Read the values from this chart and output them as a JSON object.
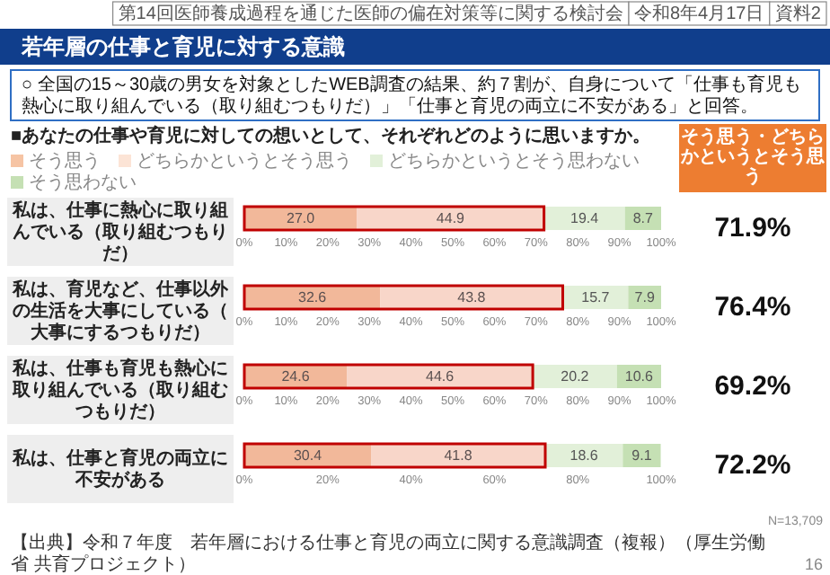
{
  "chart_data": [
    {
      "type": "bar",
      "orientation": "horizontal",
      "stacked": true,
      "legend": "top",
      "title": "若年層の仕事と育児に対する意識",
      "subtitle": "○ 全国の15～30歳の男女を対象としたWEB調査の結果、約７割が、自身について「仕事も育児も熱心に取り組んでいる（取り組むつもりだ）」「仕事と育児の両立に不安がある」と回答。",
      "categories": [
        "私は、仕事に熱心に取り組んでいる（取り組むつもりだ）"
      ],
      "bands": [
        {
          "axis": "x",
          "from": 0,
          "to": 71.9,
          "color": "#c00000"
        }
      ],
      "series": [
        {
          "name": "そう思う",
          "color": "#f6c4a4",
          "values": [
            27.0
          ],
          "value_labels": [
            "27.0"
          ]
        },
        {
          "name": "どちらかというとそう思う",
          "color": "#fce4d6",
          "values": [
            44.9
          ],
          "value_labels": [
            "44.9"
          ]
        },
        {
          "name": "どちらかというとそう思わない",
          "color": "#e2f0d9",
          "values": [
            19.4
          ],
          "value_labels": [
            "19.4"
          ]
        },
        {
          "name": "そう思わない",
          "color": "#c5e0b4",
          "values": [
            8.7
          ],
          "value_labels": [
            "8.7"
          ]
        }
      ],
      "xlim": [
        0,
        100
      ],
      "xticks": [
        {
          "value": 0,
          "label": "0%"
        },
        {
          "value": 10,
          "label": "10%"
        },
        {
          "value": 20,
          "label": "20%"
        },
        {
          "value": 30,
          "label": "30%"
        },
        {
          "value": 40,
          "label": "40%"
        },
        {
          "value": 50,
          "label": "50%"
        },
        {
          "value": 60,
          "label": "60%"
        },
        {
          "value": 70,
          "label": "70%"
        },
        {
          "value": 80,
          "label": "80%"
        },
        {
          "value": 90,
          "label": "90%"
        },
        {
          "value": 100,
          "label": "100%"
        }
      ],
      "annotations": [
        "71.9%",
        "第14回医師養成過程を通じた医師の偏在対策等に関する検討会",
        "令和8年4月17日",
        "資料2",
        "■あなたの仕事や育児に対しての想いとして、それぞれどのように思いますか。",
        "そう思う・どちらかというとそう思う"
      ]
    },
    {
      "type": "bar",
      "orientation": "horizontal",
      "stacked": true,
      "categories": [
        "私は、育児など、仕事以外の生活を大事にしている（大事にするつもりだ）"
      ],
      "bands": [
        {
          "axis": "x",
          "from": 0,
          "to": 76.4,
          "color": "#c00000"
        }
      ],
      "series": [
        {
          "color": "#f6c4a4",
          "values": [
            32.6
          ],
          "value_labels": [
            "32.6"
          ]
        },
        {
          "color": "#fce4d6",
          "values": [
            43.8
          ],
          "value_labels": [
            "43.8"
          ]
        },
        {
          "color": "#e2f0d9",
          "values": [
            15.7
          ],
          "value_labels": [
            "15.7"
          ]
        },
        {
          "color": "#c5e0b4",
          "values": [
            7.9
          ],
          "value_labels": [
            "7.9"
          ]
        }
      ],
      "xlim": [
        0,
        100
      ],
      "xticks": [
        {
          "value": 0,
          "label": "0%"
        },
        {
          "value": 10,
          "label": "10%"
        },
        {
          "value": 20,
          "label": "20%"
        },
        {
          "value": 30,
          "label": "30%"
        },
        {
          "value": 40,
          "label": "40%"
        },
        {
          "value": 50,
          "label": "50%"
        },
        {
          "value": 60,
          "label": "60%"
        },
        {
          "value": 70,
          "label": "70%"
        },
        {
          "value": 80,
          "label": "80%"
        },
        {
          "value": 90,
          "label": "90%"
        },
        {
          "value": 100,
          "label": "100%"
        }
      ],
      "annotations": [
        "76.4%"
      ]
    },
    {
      "type": "bar",
      "orientation": "horizontal",
      "stacked": true,
      "categories": [
        "私は、仕事も育児も熱心に取り組んでいる（取り組むつもりだ）"
      ],
      "bands": [
        {
          "axis": "x",
          "from": 0,
          "to": 69.2,
          "color": "#c00000"
        }
      ],
      "series": [
        {
          "color": "#f6c4a4",
          "values": [
            24.6
          ],
          "value_labels": [
            "24.6"
          ]
        },
        {
          "color": "#fce4d6",
          "values": [
            44.6
          ],
          "value_labels": [
            "44.6"
          ]
        },
        {
          "color": "#e2f0d9",
          "values": [
            20.2
          ],
          "value_labels": [
            "20.2"
          ]
        },
        {
          "color": "#c5e0b4",
          "values": [
            10.6
          ],
          "value_labels": [
            "10.6"
          ]
        }
      ],
      "xlim": [
        0,
        100
      ],
      "xticks": [
        {
          "value": 0,
          "label": "0%"
        },
        {
          "value": 10,
          "label": "10%"
        },
        {
          "value": 20,
          "label": "20%"
        },
        {
          "value": 30,
          "label": "30%"
        },
        {
          "value": 40,
          "label": "40%"
        },
        {
          "value": 50,
          "label": "50%"
        },
        {
          "value": 60,
          "label": "60%"
        },
        {
          "value": 70,
          "label": "70%"
        },
        {
          "value": 80,
          "label": "80%"
        },
        {
          "value": 90,
          "label": "90%"
        },
        {
          "value": 100,
          "label": "100%"
        }
      ],
      "annotations": [
        "69.2%"
      ]
    },
    {
      "type": "bar",
      "orientation": "horizontal",
      "stacked": true,
      "categories": [
        "私は、仕事と育児の両立に不安がある"
      ],
      "bands": [
        {
          "axis": "x",
          "from": 0,
          "to": 72.2,
          "color": "#c00000"
        }
      ],
      "series": [
        {
          "color": "#f6c4a4",
          "values": [
            30.4
          ],
          "value_labels": [
            "30.4"
          ]
        },
        {
          "color": "#fce4d6",
          "values": [
            41.8
          ],
          "value_labels": [
            "41.8"
          ]
        },
        {
          "color": "#e2f0d9",
          "values": [
            18.6
          ],
          "value_labels": [
            "18.6"
          ]
        },
        {
          "color": "#c5e0b4",
          "values": [
            9.1
          ],
          "value_labels": [
            "9.1"
          ]
        }
      ],
      "xlim": [
        0,
        100
      ],
      "xticks": [
        {
          "value": 0,
          "label": "0%"
        },
        {
          "value": 20,
          "label": "20%"
        },
        {
          "value": 40,
          "label": "40%"
        },
        {
          "value": 60,
          "label": "60%"
        },
        {
          "value": 80,
          "label": "80%"
        },
        {
          "value": 100,
          "label": "100%"
        }
      ],
      "annotations": [
        "72.2%",
        "N=13,709",
        "【出典】令和７年度　若年層における仕事と育児の両立に関する意識調査（複報）（厚生労働省 共育プロジェクト）",
        "16"
      ]
    }
  ]
}
